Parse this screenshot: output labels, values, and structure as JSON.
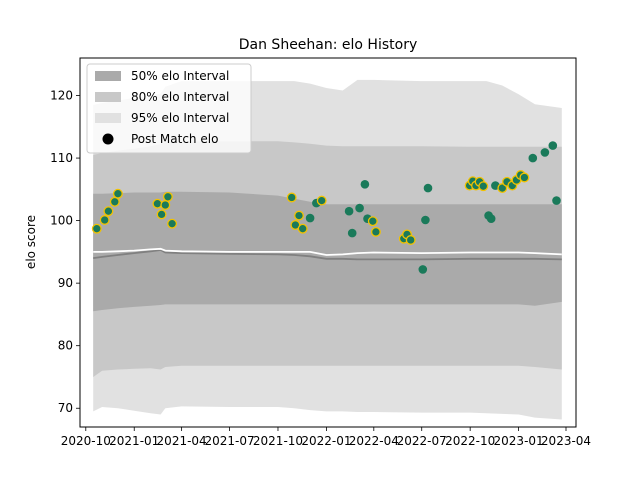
{
  "chart_data": {
    "type": "scatter",
    "title": "Dan Sheehan: elo History",
    "xlabel": "",
    "ylabel": "elo score",
    "xlim": [
      "2020-09-20",
      "2023-04-20"
    ],
    "ylim": [
      67,
      126
    ],
    "grid": false,
    "legend_placement": "top-left",
    "x_ticks": [
      "2020-10",
      "2021-01",
      "2021-04",
      "2021-07",
      "2021-10",
      "2022-01",
      "2022-04",
      "2022-07",
      "2022-10",
      "2023-01",
      "2023-04"
    ],
    "y_ticks": [
      70,
      80,
      90,
      100,
      110,
      120
    ],
    "legend": [
      "50% elo Interval",
      "80% elo Interval",
      "95% elo Interval",
      "Post Match elo"
    ],
    "colors": {
      "band50": "#aaaaaa",
      "band80": "#c8c8c8",
      "band95": "#e1e1e1",
      "mean_line": "#808080",
      "median_line": "#ffffff",
      "point_fill": "#1a7a5a",
      "point_edge_early": "#f2c200"
    },
    "bands": {
      "x": [
        "2020-10-15",
        "2020-11-01",
        "2020-12-01",
        "2021-01-01",
        "2021-02-01",
        "2021-02-20",
        "2021-03-01",
        "2021-04-01",
        "2021-07-01",
        "2021-10-01",
        "2021-11-01",
        "2021-12-01",
        "2022-01-01",
        "2022-02-01",
        "2022-03-01",
        "2022-04-01",
        "2022-07-01",
        "2022-10-01",
        "2022-11-01",
        "2022-12-01",
        "2023-01-01",
        "2023-02-01",
        "2023-03-24"
      ],
      "p95_low": [
        69.5,
        70.2,
        70.0,
        69.6,
        69.2,
        69.0,
        70.0,
        70.3,
        70.2,
        70.2,
        70.0,
        69.7,
        69.5,
        69.5,
        69.4,
        69.4,
        69.3,
        69.3,
        69.2,
        69.1,
        69.0,
        68.5,
        68.2
      ],
      "p95_high": [
        118.5,
        118.8,
        119.2,
        119.6,
        120.0,
        120.3,
        121.4,
        122.3,
        122.3,
        122.3,
        122.3,
        121.9,
        121.2,
        120.8,
        122.5,
        122.5,
        122.3,
        122.3,
        122.3,
        121.6,
        120.2,
        118.6,
        118.0
      ],
      "p80_low": [
        75.0,
        76.0,
        76.2,
        76.3,
        76.4,
        76.2,
        76.6,
        76.8,
        76.8,
        76.8,
        76.8,
        76.8,
        76.8,
        76.8,
        76.8,
        76.8,
        76.8,
        76.8,
        76.8,
        76.8,
        76.8,
        76.6,
        76.2
      ],
      "p80_high": [
        110.5,
        110.8,
        111.2,
        111.5,
        111.9,
        112.2,
        112.5,
        112.7,
        112.7,
        112.7,
        112.5,
        112.3,
        112.0,
        111.9,
        111.9,
        111.9,
        111.9,
        111.8,
        111.8,
        111.8,
        111.8,
        111.8,
        111.8
      ],
      "p50_low": [
        85.5,
        85.7,
        86.0,
        86.2,
        86.4,
        86.5,
        86.6,
        86.6,
        86.6,
        86.6,
        86.6,
        86.6,
        86.6,
        86.6,
        86.6,
        86.6,
        86.6,
        86.6,
        86.6,
        86.6,
        86.6,
        86.4,
        87.0
      ],
      "p50_high": [
        104.3,
        104.3,
        104.4,
        104.5,
        104.5,
        104.5,
        104.6,
        104.6,
        104.5,
        104.0,
        103.5,
        103.0,
        102.6,
        102.6,
        102.6,
        102.6,
        102.6,
        102.6,
        102.6,
        102.6,
        102.6,
        102.6,
        102.6
      ],
      "mean": [
        94.0,
        94.2,
        94.5,
        94.8,
        95.1,
        95.3,
        94.9,
        94.8,
        94.7,
        94.6,
        94.5,
        94.3,
        93.9,
        93.9,
        93.8,
        93.8,
        93.8,
        93.9,
        93.9,
        93.9,
        93.9,
        93.9,
        93.8
      ],
      "median": [
        95.0,
        95.0,
        95.1,
        95.2,
        95.4,
        95.5,
        95.2,
        95.1,
        95.0,
        95.0,
        95.0,
        95.0,
        94.5,
        94.6,
        94.8,
        94.9,
        94.8,
        94.9,
        94.9,
        94.9,
        94.9,
        94.8,
        94.6
      ]
    },
    "points": [
      {
        "x": "2020-10-22",
        "y": 98.7,
        "edge": "yellow"
      },
      {
        "x": "2020-11-06",
        "y": 100.1,
        "edge": "yellow"
      },
      {
        "x": "2020-11-13",
        "y": 101.5,
        "edge": "yellow"
      },
      {
        "x": "2020-11-25",
        "y": 103.0,
        "edge": "yellow"
      },
      {
        "x": "2020-12-01",
        "y": 104.3,
        "edge": "yellow"
      },
      {
        "x": "2021-02-14",
        "y": 102.7,
        "edge": "yellow"
      },
      {
        "x": "2021-02-22",
        "y": 101.0,
        "edge": "yellow"
      },
      {
        "x": "2021-03-01",
        "y": 102.5,
        "edge": "yellow"
      },
      {
        "x": "2021-03-06",
        "y": 103.8,
        "edge": "yellow"
      },
      {
        "x": "2021-03-14",
        "y": 99.5,
        "edge": "yellow"
      },
      {
        "x": "2021-10-27",
        "y": 103.7,
        "edge": "yellow"
      },
      {
        "x": "2021-11-03",
        "y": 99.3,
        "edge": "yellow"
      },
      {
        "x": "2021-11-10",
        "y": 100.8,
        "edge": "yellow"
      },
      {
        "x": "2021-11-17",
        "y": 98.7,
        "edge": "yellow"
      },
      {
        "x": "2021-12-01",
        "y": 100.4,
        "edge": "none"
      },
      {
        "x": "2021-12-13",
        "y": 102.8,
        "edge": "none"
      },
      {
        "x": "2021-12-23",
        "y": 103.2,
        "edge": "yellow"
      },
      {
        "x": "2022-02-13",
        "y": 101.5,
        "edge": "none"
      },
      {
        "x": "2022-02-19",
        "y": 98.0,
        "edge": "none"
      },
      {
        "x": "2022-03-05",
        "y": 102.0,
        "edge": "none"
      },
      {
        "x": "2022-03-15",
        "y": 105.8,
        "edge": "none"
      },
      {
        "x": "2022-03-20",
        "y": 100.3,
        "edge": "none"
      },
      {
        "x": "2022-03-30",
        "y": 99.9,
        "edge": "yellow"
      },
      {
        "x": "2022-04-05",
        "y": 98.2,
        "edge": "yellow"
      },
      {
        "x": "2022-05-28",
        "y": 97.1,
        "edge": "yellow"
      },
      {
        "x": "2022-06-03",
        "y": 97.8,
        "edge": "yellow"
      },
      {
        "x": "2022-06-10",
        "y": 96.9,
        "edge": "yellow"
      },
      {
        "x": "2022-07-03",
        "y": 92.2,
        "edge": "none"
      },
      {
        "x": "2022-07-08",
        "y": 100.1,
        "edge": "none"
      },
      {
        "x": "2022-07-13",
        "y": 105.2,
        "edge": "none"
      },
      {
        "x": "2022-09-30",
        "y": 105.6,
        "edge": "yellow"
      },
      {
        "x": "2022-10-06",
        "y": 106.3,
        "edge": "yellow"
      },
      {
        "x": "2022-10-12",
        "y": 105.6,
        "edge": "yellow"
      },
      {
        "x": "2022-10-19",
        "y": 106.2,
        "edge": "yellow"
      },
      {
        "x": "2022-10-26",
        "y": 105.5,
        "edge": "yellow"
      },
      {
        "x": "2022-11-05",
        "y": 100.8,
        "edge": "none"
      },
      {
        "x": "2022-11-10",
        "y": 100.3,
        "edge": "none"
      },
      {
        "x": "2022-11-18",
        "y": 105.6,
        "edge": "none"
      },
      {
        "x": "2022-12-01",
        "y": 105.2,
        "edge": "yellow"
      },
      {
        "x": "2022-12-10",
        "y": 106.2,
        "edge": "yellow"
      },
      {
        "x": "2022-12-20",
        "y": 105.6,
        "edge": "yellow"
      },
      {
        "x": "2022-12-28",
        "y": 106.5,
        "edge": "yellow"
      },
      {
        "x": "2023-01-05",
        "y": 107.3,
        "edge": "yellow"
      },
      {
        "x": "2023-01-12",
        "y": 106.9,
        "edge": "yellow"
      },
      {
        "x": "2023-01-28",
        "y": 110.0,
        "edge": "none"
      },
      {
        "x": "2023-02-20",
        "y": 110.9,
        "edge": "none"
      },
      {
        "x": "2023-03-07",
        "y": 112.0,
        "edge": "none"
      },
      {
        "x": "2023-03-14",
        "y": 103.2,
        "edge": "none"
      }
    ]
  }
}
